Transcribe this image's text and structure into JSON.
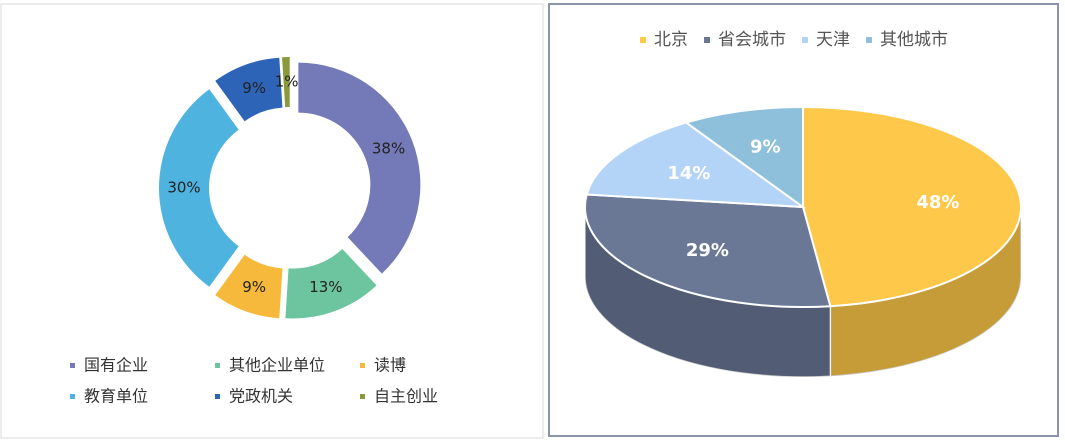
{
  "chart_data": [
    {
      "type": "donut",
      "categories": [
        "国有企业",
        "其他企业单位",
        "读博",
        "教育单位",
        "党政机关",
        "自主创业"
      ],
      "values": [
        38,
        13,
        9,
        30,
        9,
        1
      ],
      "value_labels": [
        "38%",
        "13%",
        "9%",
        "30%",
        "9%",
        "1%"
      ],
      "colors": [
        "#7479b8",
        "#6cc59e",
        "#f6b93b",
        "#4fb3e0",
        "#2e64b8",
        "#8a9a3a"
      ],
      "legend": "bottom"
    },
    {
      "type": "pie3d",
      "categories": [
        "北京",
        "省会城市",
        "天津",
        "其他城市"
      ],
      "values": [
        48,
        29,
        14,
        9
      ],
      "value_labels": [
        "48%",
        "29%",
        "14%",
        "9%"
      ],
      "colors": [
        "#fec84a",
        "#6a7896",
        "#b3d4f7",
        "#8ec0dc"
      ],
      "legend": "top"
    }
  ]
}
